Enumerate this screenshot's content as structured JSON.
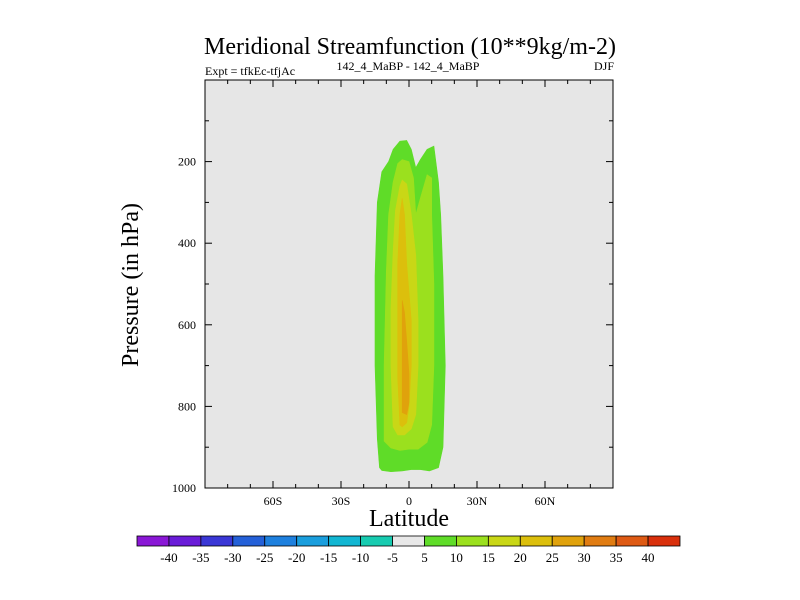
{
  "chart_data": {
    "type": "heatmap",
    "title": "Meridional Streamfunction (10**9kg/m-2)",
    "subtitle_left": "Expt = tfkEc-tfjAc",
    "subtitle_center": "142_4_MaBP - 142_4_MaBP",
    "subtitle_right": "DJF",
    "xlabel": "Latitude",
    "ylabel": "Pressure (in hPa)",
    "xlim": [
      -90,
      90
    ],
    "ylim": [
      1000,
      0
    ],
    "x_ticks": [
      {
        "value": -60,
        "label": "60S"
      },
      {
        "value": -30,
        "label": "30S"
      },
      {
        "value": 0,
        "label": "0"
      },
      {
        "value": 30,
        "label": "30N"
      },
      {
        "value": 60,
        "label": "60N"
      }
    ],
    "y_ticks": [
      {
        "value": 200,
        "label": "200"
      },
      {
        "value": 400,
        "label": "400"
      },
      {
        "value": 600,
        "label": "600"
      },
      {
        "value": 800,
        "label": "800"
      },
      {
        "value": 1000,
        "label": "1000"
      }
    ],
    "background_color": "#e6e6e6",
    "colorbar": {
      "labels": [
        "-40",
        "-35",
        "-30",
        "-25",
        "-20",
        "-15",
        "-10",
        "-5",
        "5",
        "10",
        "15",
        "20",
        "25",
        "30",
        "35",
        "40"
      ],
      "colors": [
        "#8a17d6",
        "#6a1cd8",
        "#3a37d6",
        "#2460d8",
        "#1e80de",
        "#1a9edd",
        "#12b6d2",
        "#17cbb0",
        "#e8e8e8",
        "#5fdc28",
        "#9be01e",
        "#c9d716",
        "#dcbf0c",
        "#e0a20c",
        "#e07c12",
        "#de5a14",
        "#d9300c"
      ]
    },
    "contours": [
      {
        "level": 5,
        "color": "#5fdc28",
        "outline": [
          [
            -13,
            950
          ],
          [
            -14,
            880
          ],
          [
            -15,
            700
          ],
          [
            -15,
            480
          ],
          [
            -14,
            300
          ],
          [
            -12,
            225
          ],
          [
            -9,
            200
          ],
          [
            -7,
            170
          ],
          [
            -4,
            150
          ],
          [
            -1,
            148
          ],
          [
            1,
            170
          ],
          [
            3,
            215
          ],
          [
            5,
            195
          ],
          [
            8,
            170
          ],
          [
            11,
            162
          ],
          [
            13,
            250
          ],
          [
            14,
            330
          ],
          [
            15,
            480
          ],
          [
            16,
            700
          ],
          [
            15,
            900
          ],
          [
            13,
            950
          ],
          [
            9,
            958
          ],
          [
            5,
            955
          ],
          [
            1,
            955
          ],
          [
            -3,
            958
          ],
          [
            -8,
            960
          ],
          [
            -12,
            957
          ]
        ]
      },
      {
        "level": 10,
        "color": "#9be01e",
        "outline": [
          [
            -11,
            885
          ],
          [
            -11,
            700
          ],
          [
            -10,
            470
          ],
          [
            -9,
            330
          ],
          [
            -7,
            250
          ],
          [
            -5,
            205
          ],
          [
            -3,
            195
          ],
          [
            0,
            200
          ],
          [
            2,
            240
          ],
          [
            3,
            330
          ],
          [
            5,
            290
          ],
          [
            8,
            232
          ],
          [
            10,
            240
          ],
          [
            10,
            330
          ],
          [
            11,
            500
          ],
          [
            11,
            700
          ],
          [
            10,
            845
          ],
          [
            8,
            888
          ],
          [
            4,
            905
          ],
          [
            0,
            905
          ],
          [
            -4,
            908
          ],
          [
            -8,
            902
          ]
        ]
      },
      {
        "level": 15,
        "color": "#c9d716",
        "outline": [
          [
            -7,
            850
          ],
          [
            -8,
            700
          ],
          [
            -8,
            560
          ],
          [
            -7,
            420
          ],
          [
            -6,
            320
          ],
          [
            -4,
            260
          ],
          [
            -3,
            245
          ],
          [
            -1,
            255
          ],
          [
            1,
            330
          ],
          [
            3,
            430
          ],
          [
            4,
            590
          ],
          [
            4,
            700
          ],
          [
            3,
            820
          ],
          [
            1,
            855
          ],
          [
            -2,
            870
          ],
          [
            -5,
            870
          ]
        ]
      },
      {
        "level": 20,
        "color": "#dcbf0c",
        "outline": [
          [
            -4,
            845
          ],
          [
            -5,
            730
          ],
          [
            -5,
            600
          ],
          [
            -5,
            450
          ],
          [
            -4,
            330
          ],
          [
            -3,
            290
          ],
          [
            -2,
            330
          ],
          [
            -1,
            450
          ],
          [
            1,
            590
          ],
          [
            1,
            700
          ],
          [
            0,
            800
          ],
          [
            -1,
            840
          ],
          [
            -3,
            850
          ]
        ]
      },
      {
        "level": 25,
        "color": "#e0a20c",
        "outline": [
          [
            -3,
            815
          ],
          [
            -3,
            720
          ],
          [
            -3,
            610
          ],
          [
            -3,
            540
          ],
          [
            -2,
            570
          ],
          [
            -1,
            640
          ],
          [
            0,
            720
          ],
          [
            0,
            790
          ],
          [
            -1,
            820
          ]
        ]
      }
    ]
  }
}
